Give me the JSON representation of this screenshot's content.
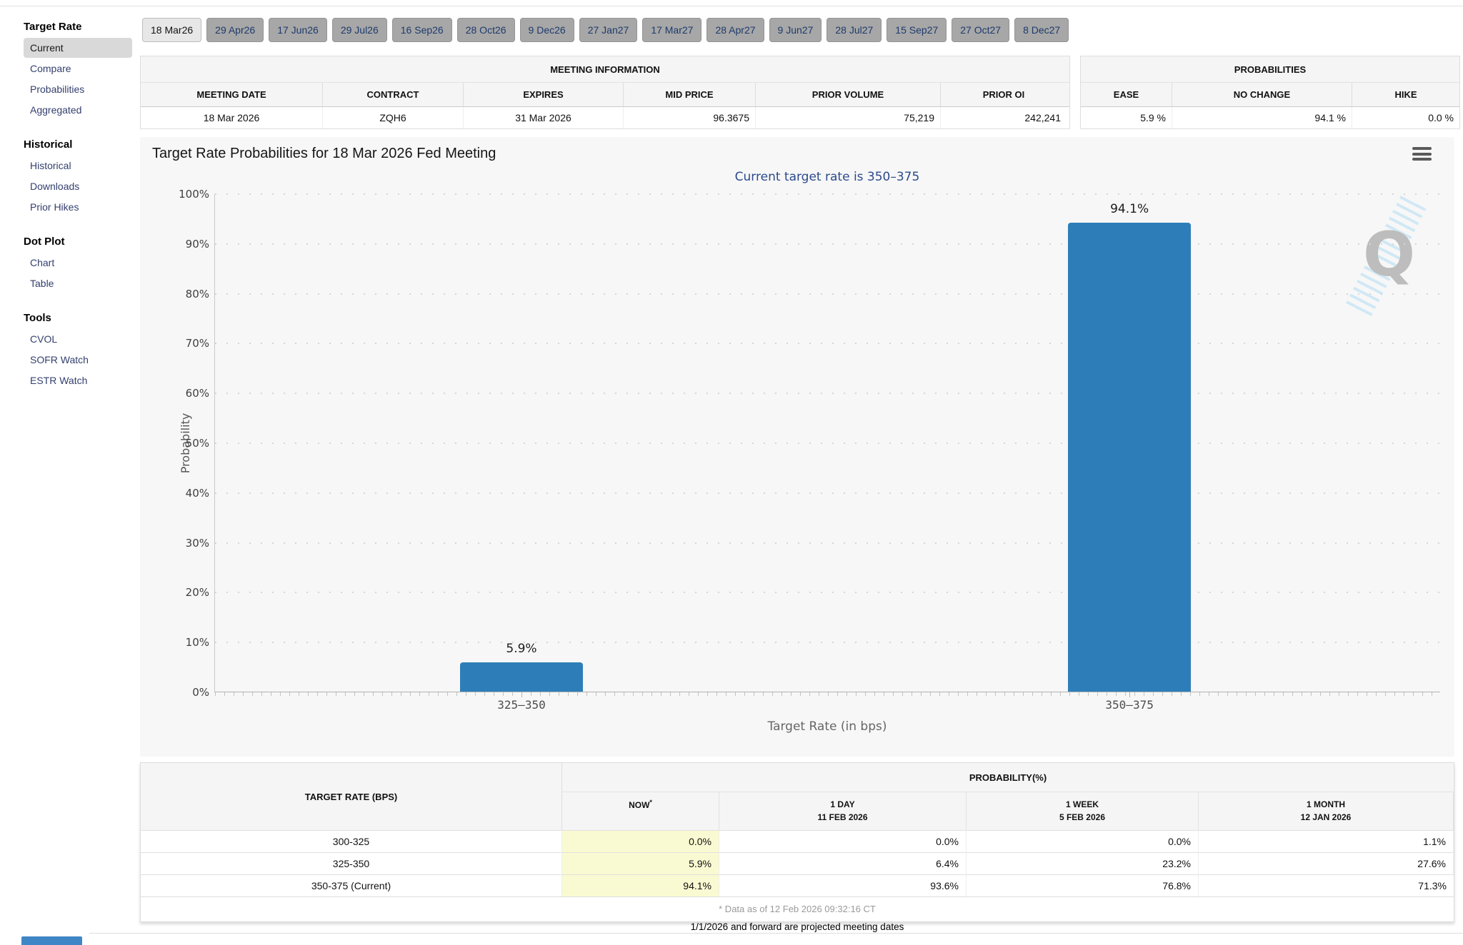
{
  "sidebar": {
    "sections": [
      {
        "title": "Target Rate",
        "items": [
          {
            "label": "Current",
            "active": true
          },
          {
            "label": "Compare",
            "active": false
          },
          {
            "label": "Probabilities",
            "active": false
          },
          {
            "label": "Aggregated",
            "active": false
          }
        ]
      },
      {
        "title": "Historical",
        "items": [
          {
            "label": "Historical",
            "active": false
          },
          {
            "label": "Downloads",
            "active": false
          },
          {
            "label": "Prior Hikes",
            "active": false
          }
        ]
      },
      {
        "title": "Dot Plot",
        "items": [
          {
            "label": "Chart",
            "active": false
          },
          {
            "label": "Table",
            "active": false
          }
        ]
      },
      {
        "title": "Tools",
        "items": [
          {
            "label": "CVOL",
            "active": false
          },
          {
            "label": "SOFR Watch",
            "active": false
          },
          {
            "label": "ESTR Watch",
            "active": false
          }
        ]
      }
    ]
  },
  "meeting_tabs": {
    "selected": "18 Mar26",
    "items": [
      "18 Mar26",
      "29 Apr26",
      "17 Jun26",
      "29 Jul26",
      "16 Sep26",
      "28 Oct26",
      "9 Dec26",
      "27 Jan27",
      "17 Mar27",
      "28 Apr27",
      "9 Jun27",
      "28 Jul27",
      "15 Sep27",
      "27 Oct27",
      "8 Dec27"
    ]
  },
  "meeting_info": {
    "title": "MEETING INFORMATION",
    "columns": [
      "MEETING DATE",
      "CONTRACT",
      "EXPIRES",
      "MID PRICE",
      "PRIOR VOLUME",
      "PRIOR OI"
    ],
    "values": [
      "18 Mar 2026",
      "ZQH6",
      "31 Mar 2026",
      "96.3675",
      "75,219",
      "242,241"
    ]
  },
  "probabilities_panel": {
    "title": "PROBABILITIES",
    "columns": [
      "EASE",
      "NO CHANGE",
      "HIKE"
    ],
    "values": [
      "5.9 %",
      "94.1 %",
      "0.0 %"
    ]
  },
  "chart_data": {
    "type": "bar",
    "title": "Target Rate Probabilities for 18 Mar 2026 Fed Meeting",
    "subtitle": "Current target rate is 350–375",
    "categories": [
      "325–350",
      "350–375"
    ],
    "values": [
      5.9,
      94.1
    ],
    "bar_labels": [
      "5.9%",
      "94.1%"
    ],
    "xlabel": "Target Rate (in bps)",
    "ylabel": "Probability",
    "ylim": [
      0,
      100
    ],
    "ytick_step": 10,
    "ytick_suffix": "%",
    "bar_color": "#2d7eb8",
    "grid": "dotted-horizontal",
    "legend": "none",
    "watermark": "Q",
    "menu_icon": "hamburger-icon"
  },
  "prob_table": {
    "col1_header": "TARGET RATE (BPS)",
    "group_header": "PROBABILITY(%)",
    "columns": [
      {
        "line1": "NOW",
        "sup": "*",
        "line2": ""
      },
      {
        "line1": "1 DAY",
        "line2": "11 FEB 2026"
      },
      {
        "line1": "1 WEEK",
        "line2": "5 FEB 2026"
      },
      {
        "line1": "1 MONTH",
        "line2": "12 JAN 2026"
      }
    ],
    "now_highlight_color": "#fafad2",
    "rows": [
      {
        "rate": "300-325",
        "values": [
          "0.0%",
          "0.0%",
          "0.0%",
          "1.1%"
        ]
      },
      {
        "rate": "325-350",
        "values": [
          "5.9%",
          "6.4%",
          "23.2%",
          "27.6%"
        ]
      },
      {
        "rate": "350-375 (Current)",
        "values": [
          "94.1%",
          "93.6%",
          "76.8%",
          "71.3%"
        ]
      }
    ],
    "footnote": "* Data as of 12 Feb 2026 09:32:16 CT"
  },
  "footer": {
    "note": "1/1/2026 and forward are projected meeting dates"
  }
}
